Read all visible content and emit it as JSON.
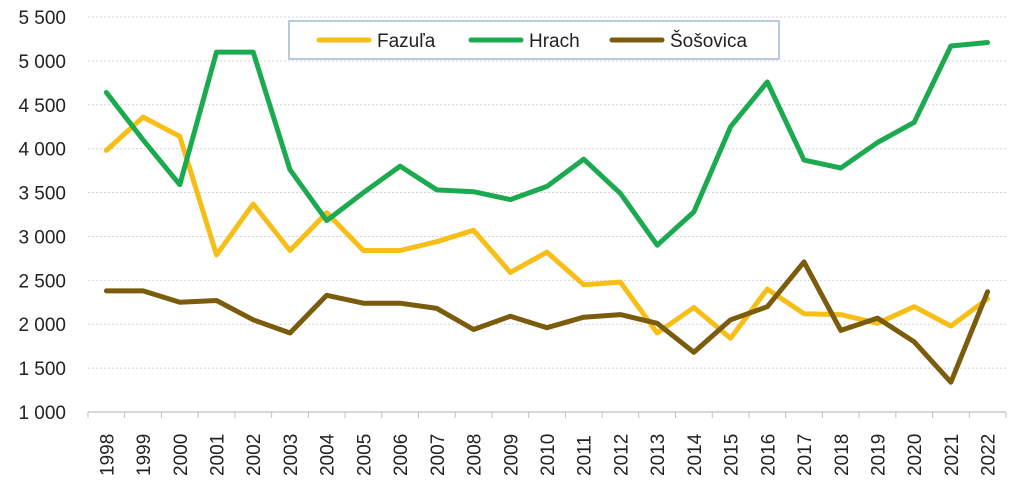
{
  "chart_data": {
    "type": "line",
    "title": "",
    "xlabel": "",
    "ylabel": "",
    "ylim": [
      1000,
      5500
    ],
    "y_ticks": [
      1000,
      1500,
      2000,
      2500,
      3000,
      3500,
      4000,
      4500,
      5000,
      5500
    ],
    "y_tick_labels": [
      "1 000",
      "1 500",
      "2 000",
      "2 500",
      "3 000",
      "3 500",
      "4 000",
      "4 500",
      "5 000",
      "5 500"
    ],
    "grid": "horizontal dotted",
    "legend_position": "top-center",
    "categories": [
      "1998",
      "1999",
      "2000",
      "2001",
      "2002",
      "2003",
      "2004",
      "2005",
      "2006",
      "2007",
      "2008",
      "2009",
      "2010",
      "2011",
      "2012",
      "2013",
      "2014",
      "2015",
      "2016",
      "2017",
      "2018",
      "2019",
      "2020",
      "2021",
      "2022"
    ],
    "series": [
      {
        "name": "Fazuľa",
        "color": "#F6BE16",
        "values": [
          3980,
          4360,
          4140,
          2790,
          3370,
          2840,
          3270,
          2840,
          2840,
          2940,
          3070,
          2590,
          2820,
          2450,
          2480,
          1900,
          2190,
          1840,
          2400,
          2120,
          2110,
          2010,
          2200,
          1980,
          2290
        ]
      },
      {
        "name": "Hrach",
        "color": "#1BAA4F",
        "values": [
          4640,
          4100,
          3590,
          5100,
          5100,
          3760,
          3180,
          3500,
          3800,
          3530,
          3510,
          3420,
          3570,
          3880,
          3490,
          2900,
          3280,
          4250,
          4760,
          3870,
          3780,
          4070,
          4300,
          5170,
          5210
        ]
      },
      {
        "name": "Šošovica",
        "color": "#7B5B0C",
        "values": [
          2380,
          2380,
          2250,
          2270,
          2050,
          1900,
          2330,
          2240,
          2240,
          2180,
          1940,
          2090,
          1960,
          2080,
          2110,
          2010,
          1680,
          2050,
          2200,
          2710,
          1930,
          2070,
          1800,
          1340,
          2370
        ]
      }
    ]
  }
}
